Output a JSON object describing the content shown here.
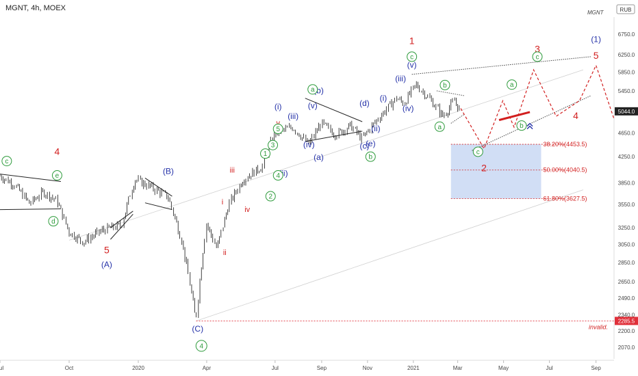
{
  "header": {
    "title": "MGNT, 4h, MOEX",
    "symbol_right": "MGNT",
    "currency": "RUB"
  },
  "colors": {
    "candles": "#111111",
    "wave_blue": "#2431a8",
    "wave_red": "#d21f1f",
    "wave_green": "#2c9a3a",
    "fib_zone": "#c9d8f3",
    "channel": "#cfcfcf",
    "price_tag": "#222222",
    "invalid_tag": "#e0303a"
  },
  "chart_data": {
    "type": "candlestick",
    "title": "MGNT, 4h, MOEX",
    "y_scale": "log",
    "ylim": [
      1980,
      7200
    ],
    "xlim": [
      "2019-07-01",
      "2021-09-25"
    ],
    "y_ticks": [
      "6750.0",
      "6250.0",
      "5850.0",
      "5450.0",
      "5044.0",
      "4650.0",
      "4250.0",
      "3850.0",
      "3550.0",
      "3250.0",
      "3050.0",
      "2850.0",
      "2650.0",
      "2490.0",
      "2340.0",
      "2285.5",
      "2200.0",
      "2070.0"
    ],
    "x_ticks": [
      {
        "label": "Jul",
        "date": "2019-07-01"
      },
      {
        "label": "Oct",
        "date": "2019-10-01"
      },
      {
        "label": "2020",
        "date": "2020-01-01"
      },
      {
        "label": "Apr",
        "date": "2020-04-01"
      },
      {
        "label": "Jul",
        "date": "2020-07-01"
      },
      {
        "label": "Sep",
        "date": "2020-09-01"
      },
      {
        "label": "Nov",
        "date": "2020-11-01"
      },
      {
        "label": "2021",
        "date": "2021-01-01"
      },
      {
        "label": "Mar",
        "date": "2021-03-01"
      },
      {
        "label": "May",
        "date": "2021-05-01"
      },
      {
        "label": "Jul",
        "date": "2021-07-01"
      },
      {
        "label": "Sep",
        "date": "2021-09-01"
      }
    ],
    "price_path": [
      [
        "2019-07-01",
        3950
      ],
      [
        "2019-07-20",
        3830
      ],
      [
        "2019-08-10",
        3560
      ],
      [
        "2019-08-28",
        3720
      ],
      [
        "2019-09-15",
        3600
      ],
      [
        "2019-10-01",
        3200
      ],
      [
        "2019-10-20",
        3080
      ],
      [
        "2019-11-15",
        3220
      ],
      [
        "2019-12-10",
        3280
      ],
      [
        "2019-12-28",
        3900
      ],
      [
        "2020-01-20",
        3780
      ],
      [
        "2020-02-10",
        3650
      ],
      [
        "2020-02-28",
        3100
      ],
      [
        "2020-03-18",
        2285
      ],
      [
        "2020-04-01",
        3300
      ],
      [
        "2020-04-15",
        3000
      ],
      [
        "2020-05-01",
        3550
      ],
      [
        "2020-05-20",
        3900
      ],
      [
        "2020-06-15",
        4100
      ],
      [
        "2020-07-01",
        4650
      ],
      [
        "2020-07-25",
        4750
      ],
      [
        "2020-08-15",
        4450
      ],
      [
        "2020-09-01",
        4820
      ],
      [
        "2020-09-20",
        4620
      ],
      [
        "2020-10-10",
        4780
      ],
      [
        "2020-10-25",
        4550
      ],
      [
        "2020-11-15",
        4900
      ],
      [
        "2020-12-10",
        5300
      ],
      [
        "2020-12-20",
        5200
      ],
      [
        "2021-01-05",
        5580
      ],
      [
        "2021-01-25",
        5250
      ],
      [
        "2021-02-10",
        4950
      ],
      [
        "2021-02-25",
        5250
      ],
      [
        "2021-03-05",
        5044
      ]
    ],
    "current_price": "5044.0",
    "invalidation": {
      "price": "2285.5",
      "label": "invalid."
    },
    "fib_levels": [
      {
        "ratio": "38.20%",
        "price": "4453.5"
      },
      {
        "ratio": "50.00%",
        "price": "4040.5"
      },
      {
        "ratio": "61.80%",
        "price": "3627.5"
      }
    ],
    "forecast_path": [
      [
        "2021-03-05",
        5100
      ],
      [
        "2021-04-05",
        4380
      ],
      [
        "2021-04-30",
        5250
      ],
      [
        "2021-05-15",
        4750
      ],
      [
        "2021-06-10",
        5900
      ],
      [
        "2021-07-10",
        4950
      ],
      [
        "2021-08-10",
        5250
      ],
      [
        "2021-09-01",
        6000
      ],
      [
        "2021-09-25",
        4900
      ]
    ],
    "wave_labels": [
      {
        "text": "1",
        "date": "2020-12-30",
        "price": 6500,
        "color": "red",
        "size": "big"
      },
      {
        "text": "2",
        "date": "2021-04-05",
        "price": 4020,
        "color": "red",
        "size": "big"
      },
      {
        "text": "3",
        "date": "2021-06-15",
        "price": 6300,
        "color": "red",
        "size": "big"
      },
      {
        "text": "4",
        "date": "2021-08-05",
        "price": 4900,
        "color": "red",
        "size": "big"
      },
      {
        "text": "5",
        "date": "2021-09-01",
        "price": 6150,
        "color": "red",
        "size": "big"
      },
      {
        "text": "4",
        "date": "2019-09-15",
        "price": 4280,
        "color": "red",
        "size": "big"
      },
      {
        "text": "5",
        "date": "2019-11-20",
        "price": 2950,
        "color": "red",
        "size": "big"
      },
      {
        "text": "(1)",
        "date": "2021-09-01",
        "price": 6550,
        "color": "blue",
        "size": "big"
      },
      {
        "text": "(A)",
        "date": "2019-11-20",
        "price": 2800,
        "color": "blue",
        "size": "big"
      },
      {
        "text": "(B)",
        "date": "2020-02-10",
        "price": 3980,
        "color": "blue",
        "size": "big"
      },
      {
        "text": "(C)",
        "date": "2020-03-20",
        "price": 2195,
        "color": "blue",
        "size": "big"
      },
      {
        "text": "(v)",
        "date": "2020-12-30",
        "price": 5950,
        "color": "blue",
        "size": "mid"
      },
      {
        "text": "(iii)",
        "date": "2020-12-15",
        "price": 5650,
        "color": "blue",
        "size": "mid"
      },
      {
        "text": "(iv)",
        "date": "2020-12-25",
        "price": 5050,
        "color": "blue",
        "size": "mid"
      },
      {
        "text": "(i)",
        "date": "2020-11-22",
        "price": 5250,
        "color": "blue",
        "size": "mid"
      },
      {
        "text": "(ii)",
        "date": "2020-11-12",
        "price": 4680,
        "color": "blue",
        "size": "mid"
      },
      {
        "text": "(d)",
        "date": "2020-10-28",
        "price": 5150,
        "color": "blue",
        "size": "mid"
      },
      {
        "text": "(c)",
        "date": "2020-10-28",
        "price": 4380,
        "color": "blue",
        "size": "mid"
      },
      {
        "text": "(e)",
        "date": "2020-11-05",
        "price": 4420,
        "color": "blue",
        "size": "mid"
      },
      {
        "text": "(b)",
        "date": "2020-08-28",
        "price": 5400,
        "color": "blue",
        "size": "mid"
      },
      {
        "text": "(a)",
        "date": "2020-08-28",
        "price": 4200,
        "color": "blue",
        "size": "mid"
      },
      {
        "text": "(iv)",
        "date": "2020-08-15",
        "price": 4400,
        "color": "blue",
        "size": "mid"
      },
      {
        "text": "(iii)",
        "date": "2020-07-25",
        "price": 4900,
        "color": "blue",
        "size": "mid"
      },
      {
        "text": "(i)",
        "date": "2020-07-05",
        "price": 5080,
        "color": "blue",
        "size": "mid"
      },
      {
        "text": "(v)",
        "date": "2020-08-20",
        "price": 5100,
        "color": "blue",
        "size": "mid"
      },
      {
        "text": "(ii)",
        "date": "2020-07-12",
        "price": 3950,
        "color": "blue",
        "size": "mid"
      },
      {
        "text": "v",
        "date": "2020-07-05",
        "price": 4780,
        "color": "red",
        "size": "small"
      },
      {
        "text": "iii",
        "date": "2020-05-05",
        "price": 4000,
        "color": "red",
        "size": "small"
      },
      {
        "text": "iv",
        "date": "2020-05-25",
        "price": 3450,
        "color": "red",
        "size": "small"
      },
      {
        "text": "i",
        "date": "2020-04-22",
        "price": 3550,
        "color": "red",
        "size": "small"
      },
      {
        "text": "ii",
        "date": "2020-04-25",
        "price": 2930,
        "color": "red",
        "size": "small"
      }
    ],
    "circled_labels": [
      {
        "text": "c",
        "date": "2020-12-30",
        "price": 6200
      },
      {
        "text": "c",
        "date": "2019-07-10",
        "price": 4180
      },
      {
        "text": "e",
        "date": "2019-09-15",
        "price": 3960
      },
      {
        "text": "d",
        "date": "2019-09-10",
        "price": 3330
      },
      {
        "text": "a",
        "date": "2020-08-20",
        "price": 5480
      },
      {
        "text": "b",
        "date": "2021-02-12",
        "price": 5570
      },
      {
        "text": "a",
        "date": "2021-02-05",
        "price": 4760
      },
      {
        "text": "a",
        "date": "2021-05-12",
        "price": 5580
      },
      {
        "text": "b",
        "date": "2021-05-25",
        "price": 4780
      },
      {
        "text": "c",
        "date": "2021-06-15",
        "price": 6200
      },
      {
        "text": "c",
        "date": "2021-03-28",
        "price": 4330
      },
      {
        "text": "b",
        "date": "2020-11-05",
        "price": 4250
      },
      {
        "text": "5",
        "date": "2020-07-05",
        "price": 4720
      },
      {
        "text": "3",
        "date": "2020-06-28",
        "price": 4440
      },
      {
        "text": "1",
        "date": "2020-06-18",
        "price": 4300
      },
      {
        "text": "4",
        "date": "2020-07-05",
        "price": 3960
      },
      {
        "text": "2",
        "date": "2020-06-25",
        "price": 3660
      },
      {
        "text": "4",
        "date": "2020-03-25",
        "price": 2080
      }
    ]
  }
}
